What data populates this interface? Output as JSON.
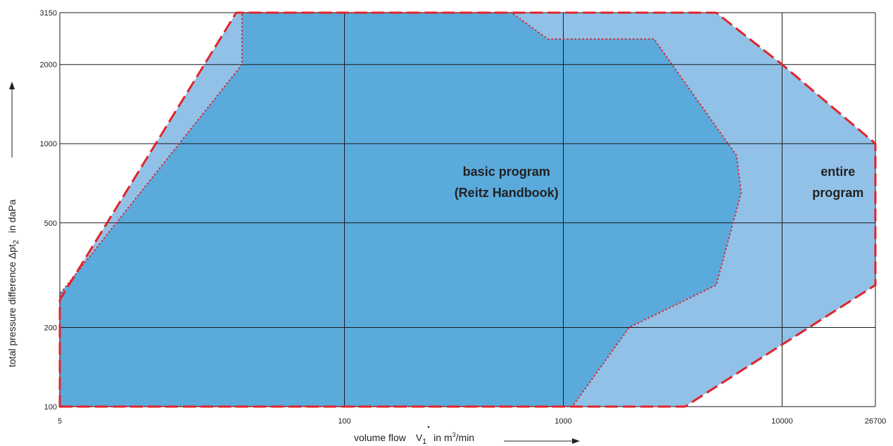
{
  "chart_data": {
    "type": "area",
    "xscale": "log",
    "yscale": "log",
    "xlim": [
      5,
      26700
    ],
    "ylim": [
      100,
      3150
    ],
    "grid": true,
    "x_ticks": [
      5,
      100,
      1000,
      10000,
      26700
    ],
    "x_tick_labels": [
      "5",
      "100",
      "1000",
      "10000",
      "26700"
    ],
    "y_ticks": [
      100,
      200,
      500,
      1000,
      2000,
      3150
    ],
    "y_tick_labels": [
      "100",
      "200",
      "500",
      "1000",
      "2000",
      "3150"
    ],
    "xlabel": {
      "prefix": "volume flow",
      "symbol": "V",
      "sub": "1",
      "mid": "in m",
      "sup": "3",
      "suffix": "/min"
    },
    "ylabel": {
      "prefix": "total pressure difference Δpt",
      "sub": "2",
      "suffix": "in daPa"
    },
    "series": [
      {
        "name": "entire program",
        "label_lines": [
          "entire",
          "program"
        ],
        "label_pos": [
          18000,
          700
        ],
        "fill": "#92c1e8",
        "stroke": "#e0242b",
        "dash": "dashed",
        "points": [
          [
            5,
            100
          ],
          [
            3600,
            100
          ],
          [
            26700,
            290
          ],
          [
            26700,
            1000
          ],
          [
            10000,
            2000
          ],
          [
            5000,
            3150
          ],
          [
            32,
            3150
          ],
          [
            5,
            255
          ]
        ]
      },
      {
        "name": "basic program (Reitz Handbook)",
        "label_lines": [
          "basic program",
          "(Reitz Handbook)"
        ],
        "label_pos": [
          550,
          700
        ],
        "fill": "#5aaadc",
        "stroke": "#e0242b",
        "dash": "dotted",
        "points": [
          [
            5,
            100
          ],
          [
            1100,
            100
          ],
          [
            2000,
            200
          ],
          [
            5000,
            290
          ],
          [
            6500,
            650
          ],
          [
            6200,
            900
          ],
          [
            2600,
            2500
          ],
          [
            850,
            2500
          ],
          [
            580,
            3150
          ],
          [
            34,
            3150
          ],
          [
            34,
            2000
          ],
          [
            5,
            268
          ]
        ]
      }
    ]
  }
}
